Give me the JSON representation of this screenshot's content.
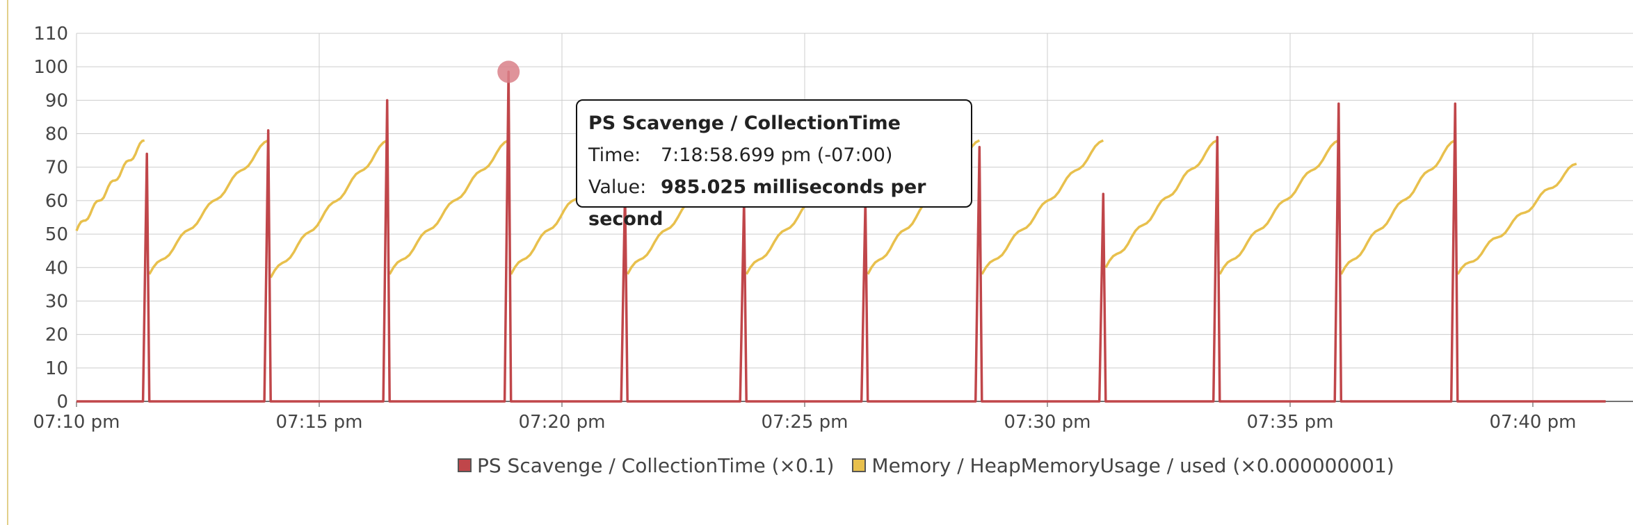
{
  "colors": {
    "series_red": "#c0464a",
    "series_yellow": "#e8c04d",
    "grid": "#cccccc",
    "axis": "#444444",
    "highlight": "#d98088"
  },
  "chart_data": {
    "type": "line",
    "ylim": [
      0,
      110
    ],
    "yticks": [
      "0",
      "10",
      "20",
      "30",
      "40",
      "50",
      "60",
      "70",
      "80",
      "90",
      "100",
      "110"
    ],
    "xticks": [
      "07:10 pm",
      "07:15 pm",
      "07:20 pm",
      "07:25 pm",
      "07:30 pm",
      "07:35 pm",
      "07:40 pm"
    ],
    "xlim_minutes": [
      0,
      32
    ],
    "series": [
      {
        "name": "PS Scavenge / CollectionTime (×0.1)",
        "color": "#c0464a",
        "spikes": [
          {
            "t": 1.45,
            "v": 74
          },
          {
            "t": 3.95,
            "v": 81
          },
          {
            "t": 6.4,
            "v": 90
          },
          {
            "t": 8.9,
            "v": 98.5
          },
          {
            "t": 11.3,
            "v": 63
          },
          {
            "t": 13.75,
            "v": 60
          },
          {
            "t": 16.25,
            "v": 60
          },
          {
            "t": 18.6,
            "v": 76
          },
          {
            "t": 21.15,
            "v": 62
          },
          {
            "t": 23.5,
            "v": 79
          },
          {
            "t": 26.0,
            "v": 89
          },
          {
            "t": 28.4,
            "v": 89
          }
        ],
        "end_minute": 31.5
      },
      {
        "name": "Memory / HeapMemoryUsage / used (×0.000000001)",
        "color": "#e8c04d",
        "sawtooth": [
          {
            "start_t": 0.0,
            "start_v": 51,
            "end_t": 1.4,
            "end_v": 78
          },
          {
            "start_t": 1.5,
            "start_v": 38,
            "end_t": 3.95,
            "end_v": 78
          },
          {
            "start_t": 4.0,
            "start_v": 37,
            "end_t": 6.4,
            "end_v": 78
          },
          {
            "start_t": 6.45,
            "start_v": 38,
            "end_t": 8.9,
            "end_v": 78
          },
          {
            "start_t": 8.95,
            "start_v": 38,
            "end_t": 11.3,
            "end_v": 78
          },
          {
            "start_t": 11.35,
            "start_v": 38,
            "end_t": 13.75,
            "end_v": 78
          },
          {
            "start_t": 13.8,
            "start_v": 38,
            "end_t": 16.25,
            "end_v": 78
          },
          {
            "start_t": 16.3,
            "start_v": 38,
            "end_t": 18.6,
            "end_v": 78
          },
          {
            "start_t": 18.65,
            "start_v": 38,
            "end_t": 21.15,
            "end_v": 78
          },
          {
            "start_t": 21.2,
            "start_v": 40,
            "end_t": 23.5,
            "end_v": 78
          },
          {
            "start_t": 23.55,
            "start_v": 38,
            "end_t": 26.0,
            "end_v": 78
          },
          {
            "start_t": 26.05,
            "start_v": 38,
            "end_t": 28.4,
            "end_v": 78
          },
          {
            "start_t": 28.45,
            "start_v": 38,
            "end_t": 30.9,
            "end_v": 71
          }
        ]
      }
    ],
    "highlight_point": {
      "t": 8.9,
      "v": 98.5
    },
    "tooltip": {
      "title": "PS Scavenge / CollectionTime",
      "time_label": "Time:",
      "time_value": "7:18:58.699 pm (-07:00)",
      "value_label": "Value:",
      "value_value": "985.025 milliseconds per second"
    },
    "legend": [
      {
        "label": "PS Scavenge / CollectionTime (×0.1)",
        "color": "#c0464a"
      },
      {
        "label": "Memory / HeapMemoryUsage / used (×0.000000001)",
        "color": "#e8c04d"
      }
    ],
    "grid": true,
    "legend_position": "bottom"
  }
}
